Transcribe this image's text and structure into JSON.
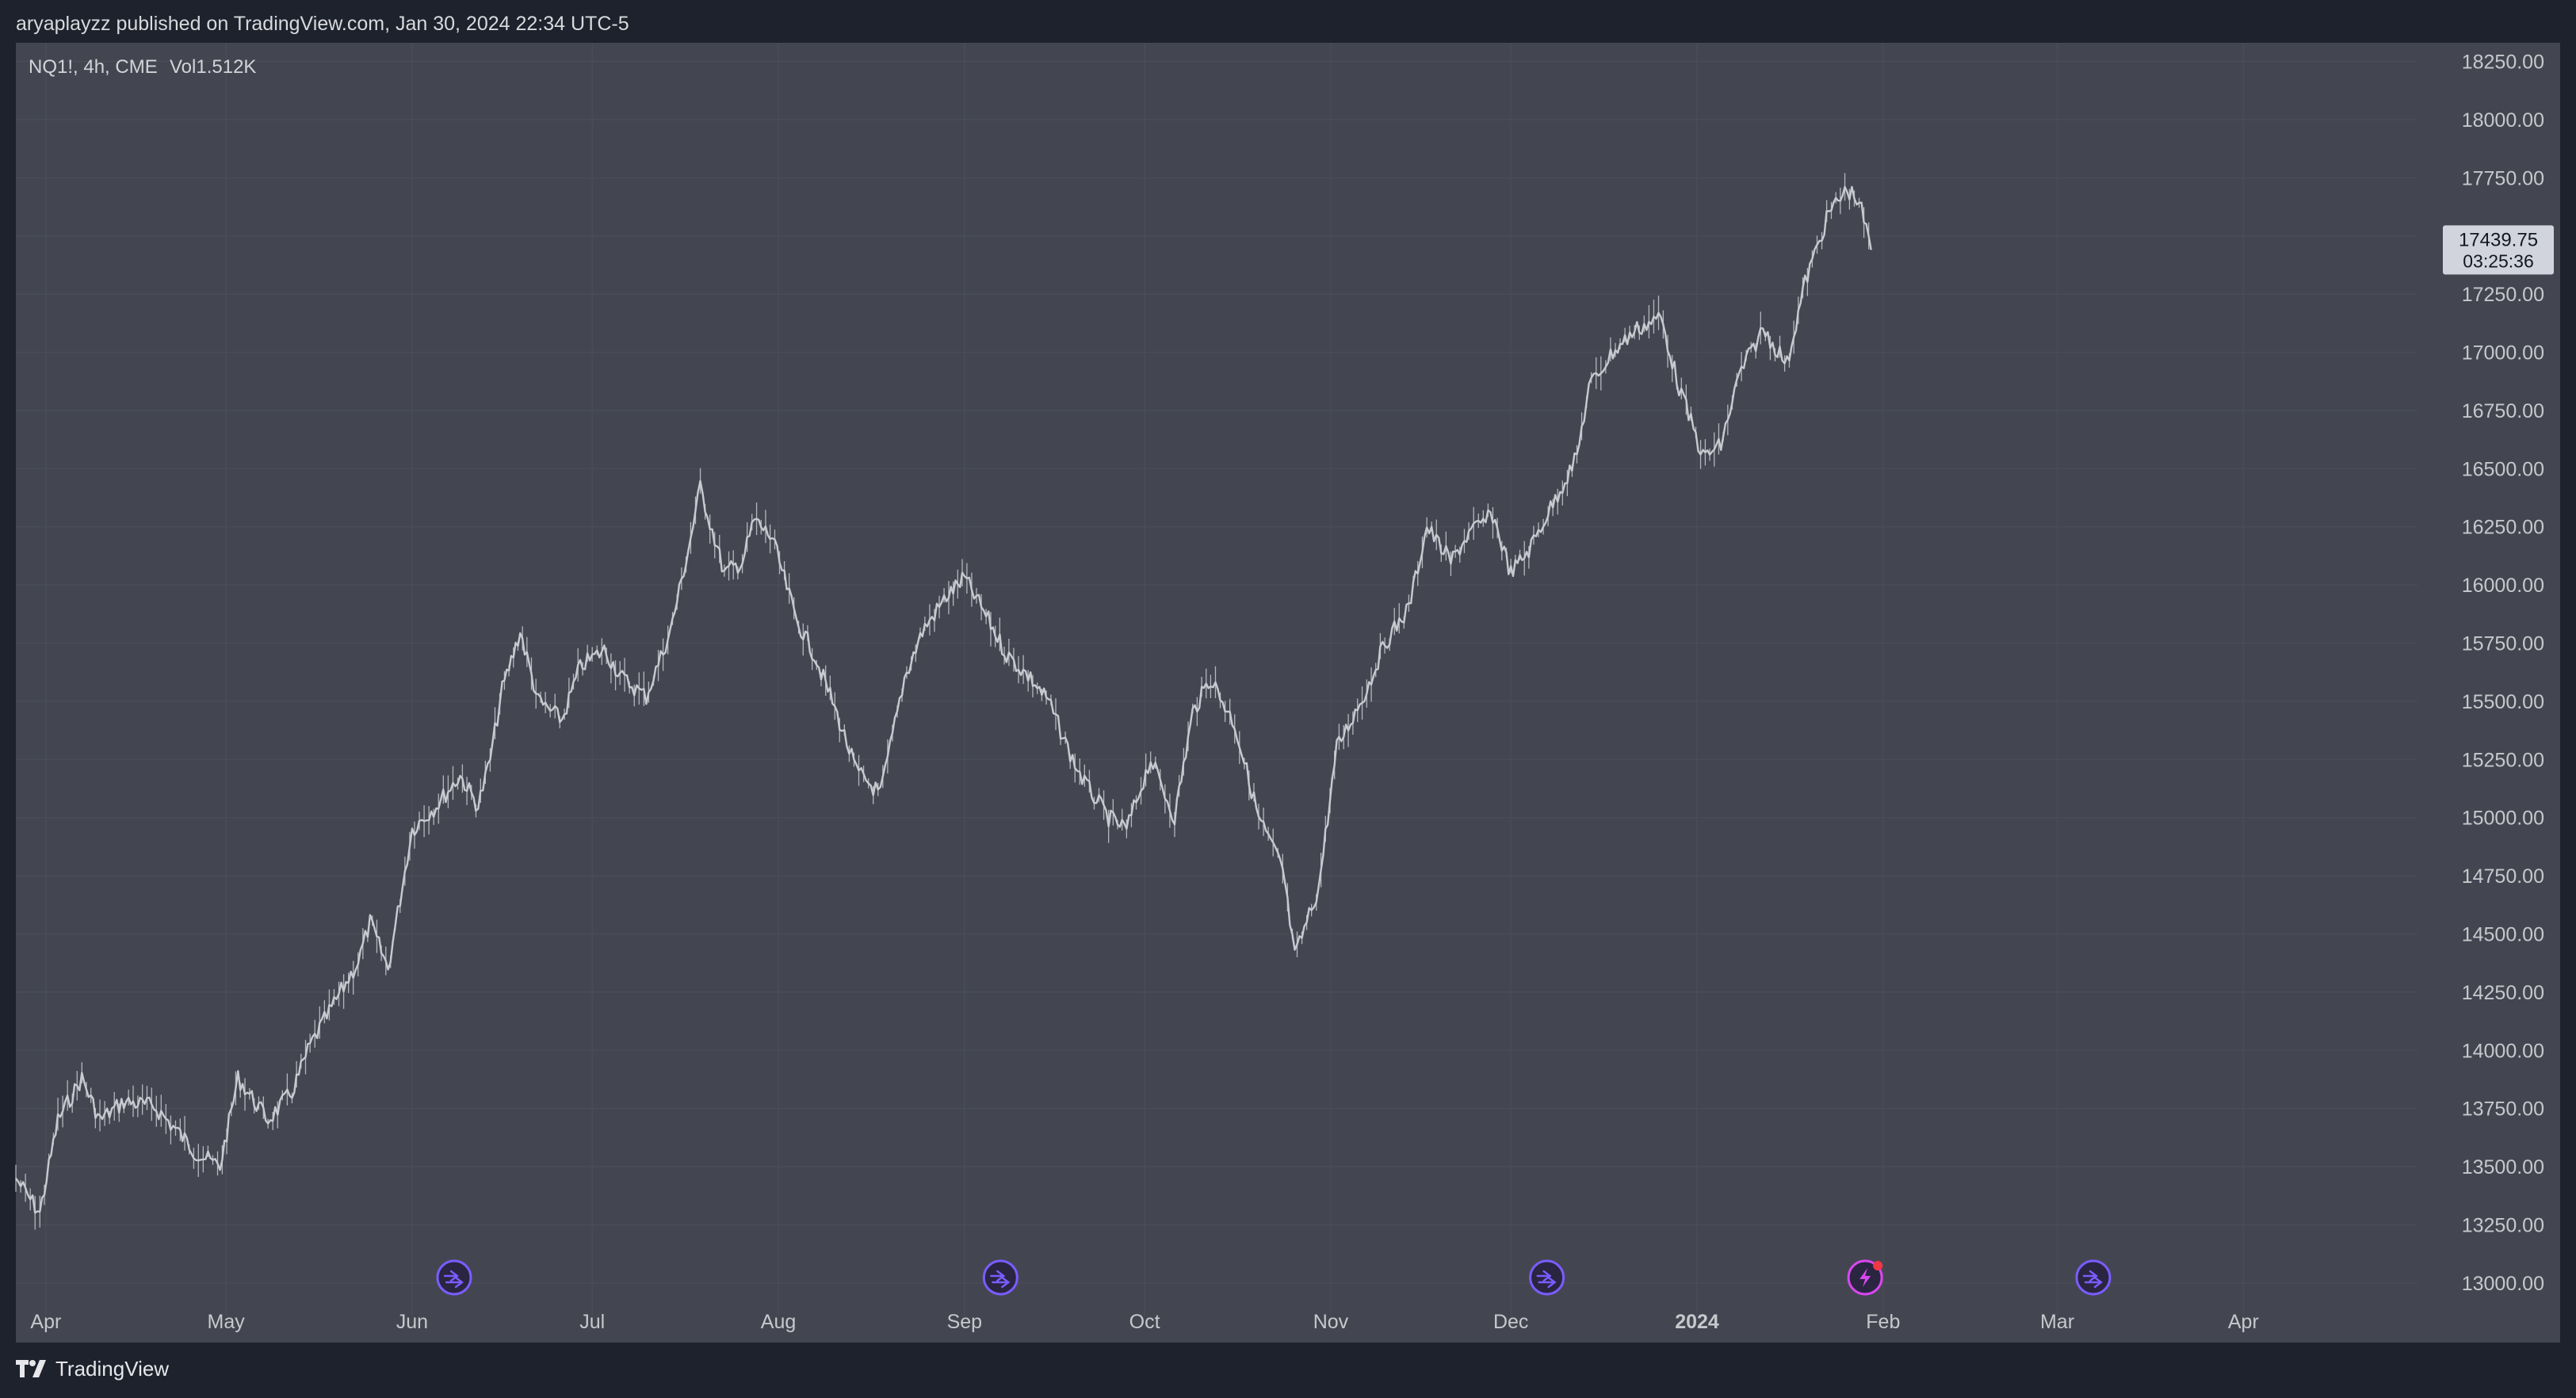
{
  "header": {
    "published_text": "aryaplayzz published on TradingView.com, Jan 30, 2024 22:34 UTC-5"
  },
  "legend": {
    "symbol_text": "NQ1!, 4h, CME",
    "volume_text": "Vol1.512K"
  },
  "price_label": {
    "price": "17439.75",
    "countdown": "03:25:36"
  },
  "footer": {
    "brand": "TradingView"
  },
  "colors": {
    "background": "#1e222d",
    "panel": "#434651",
    "candles": "#c9cad0",
    "axis_text": "#c7c8cc",
    "event_icon": "#7a5cff",
    "earnings_icon": "#d946ef",
    "price_label_bg": "#d1d4dc"
  },
  "chart_data": {
    "type": "line",
    "series": [
      {
        "x": [
          "2023-03-27",
          "2023-03-31",
          "2023-04-03",
          "2023-04-07",
          "2023-04-10",
          "2023-04-14",
          "2023-04-19",
          "2023-04-23",
          "2023-04-26",
          "2023-04-30",
          "2023-05-03",
          "2023-05-08",
          "2023-05-12",
          "2023-05-15",
          "2023-05-19",
          "2023-05-23",
          "2023-05-25",
          "2023-05-28",
          "2023-06-01",
          "2023-06-05",
          "2023-06-09",
          "2023-06-12",
          "2023-06-14",
          "2023-06-16",
          "2023-06-19",
          "2023-06-22",
          "2023-06-26",
          "2023-06-29",
          "2023-07-03",
          "2023-07-06",
          "2023-07-10",
          "2023-07-14",
          "2023-07-17",
          "2023-07-19",
          "2023-07-23",
          "2023-07-26",
          "2023-07-28",
          "2023-07-31",
          "2023-08-04",
          "2023-08-07",
          "2023-08-10",
          "2023-08-14",
          "2023-08-18",
          "2023-08-22",
          "2023-08-25",
          "2023-08-29",
          "2023-09-01",
          "2023-09-05",
          "2023-09-08",
          "2023-09-12",
          "2023-09-15",
          "2023-09-19",
          "2023-09-21",
          "2023-09-25",
          "2023-09-28",
          "2023-10-02",
          "2023-10-06",
          "2023-10-09",
          "2023-10-12",
          "2023-10-16",
          "2023-10-20",
          "2023-10-24",
          "2023-10-26",
          "2023-10-30",
          "2023-11-02",
          "2023-11-07",
          "2023-11-10",
          "2023-11-14",
          "2023-11-17",
          "2023-11-21",
          "2023-11-24",
          "2023-11-28",
          "2023-12-01",
          "2023-12-04",
          "2023-12-08",
          "2023-12-12",
          "2023-12-14",
          "2023-12-18",
          "2023-12-22",
          "2023-12-26",
          "2023-12-29",
          "2024-01-02",
          "2024-01-05",
          "2024-01-08",
          "2024-01-12",
          "2024-01-16",
          "2024-01-19",
          "2024-01-23",
          "2024-01-26",
          "2024-01-28",
          "2024-01-30"
        ],
        "y": [
          13450,
          13300,
          13700,
          13880,
          13700,
          13780,
          13760,
          13650,
          13560,
          13500,
          13880,
          13700,
          13820,
          14020,
          14200,
          14380,
          14550,
          14350,
          14950,
          15050,
          15180,
          15050,
          15250,
          15550,
          15800,
          15500,
          15420,
          15650,
          15720,
          15600,
          15520,
          15800,
          16150,
          16420,
          16050,
          16100,
          16280,
          16200,
          15850,
          15700,
          15500,
          15200,
          15100,
          15600,
          15800,
          15950,
          16030,
          15850,
          15700,
          15600,
          15500,
          15250,
          15150,
          15000,
          14950,
          15250,
          15000,
          15450,
          15600,
          15400,
          15000,
          14780,
          14400,
          14700,
          15300,
          15550,
          15750,
          15900,
          16250,
          16100,
          16220,
          16300,
          16050,
          16150,
          16350,
          16550,
          16850,
          17000,
          17100,
          17150,
          16850,
          16550,
          16600,
          16900,
          17100,
          16950,
          17300,
          17600,
          17700,
          17650,
          17440
        ]
      }
    ],
    "y_ticks": [
      13000,
      13250,
      13500,
      13750,
      14000,
      14250,
      14500,
      14750,
      15000,
      15250,
      15500,
      15750,
      16000,
      16250,
      16500,
      16750,
      17000,
      17250,
      17500,
      17750,
      18000,
      18250
    ],
    "y_tick_labels": [
      "13000.00",
      "13250.00",
      "13500.00",
      "13750.00",
      "14000.00",
      "14250.00",
      "14500.00",
      "14750.00",
      "15000.00",
      "15250.00",
      "15500.00",
      "15750.00",
      "16000.00",
      "16250.00",
      "16500.00",
      "16750.00",
      "17000.00",
      "17250.00",
      "17500.00",
      "17750.00",
      "18000.00",
      "18250.00"
    ],
    "ylim": [
      12860,
      18330
    ],
    "xlim": [
      "2023-03-27",
      "2024-04-30"
    ],
    "x_ticks": [
      {
        "label": "Apr",
        "date": "2023-04-01",
        "bold": false
      },
      {
        "label": "May",
        "date": "2023-05-01",
        "bold": false
      },
      {
        "label": "Jun",
        "date": "2023-06-01",
        "bold": false
      },
      {
        "label": "Jul",
        "date": "2023-07-01",
        "bold": false
      },
      {
        "label": "Aug",
        "date": "2023-08-01",
        "bold": false
      },
      {
        "label": "Sep",
        "date": "2023-09-01",
        "bold": false
      },
      {
        "label": "Oct",
        "date": "2023-10-01",
        "bold": false
      },
      {
        "label": "Nov",
        "date": "2023-11-01",
        "bold": false
      },
      {
        "label": "Dec",
        "date": "2023-12-01",
        "bold": false
      },
      {
        "label": "2024",
        "date": "2024-01-01",
        "bold": true
      },
      {
        "label": "Feb",
        "date": "2024-02-01",
        "bold": false
      },
      {
        "label": "Mar",
        "date": "2024-03-01",
        "bold": false
      },
      {
        "label": "Apr",
        "date": "2024-04-01",
        "bold": false
      }
    ],
    "events": [
      {
        "date": "2023-06-08",
        "kind": "dividend"
      },
      {
        "date": "2023-09-07",
        "kind": "dividend"
      },
      {
        "date": "2023-12-07",
        "kind": "dividend"
      },
      {
        "date": "2024-01-29",
        "kind": "earnings"
      },
      {
        "date": "2024-03-07",
        "kind": "dividend"
      }
    ],
    "current_price": 17439.75,
    "grid": true
  }
}
